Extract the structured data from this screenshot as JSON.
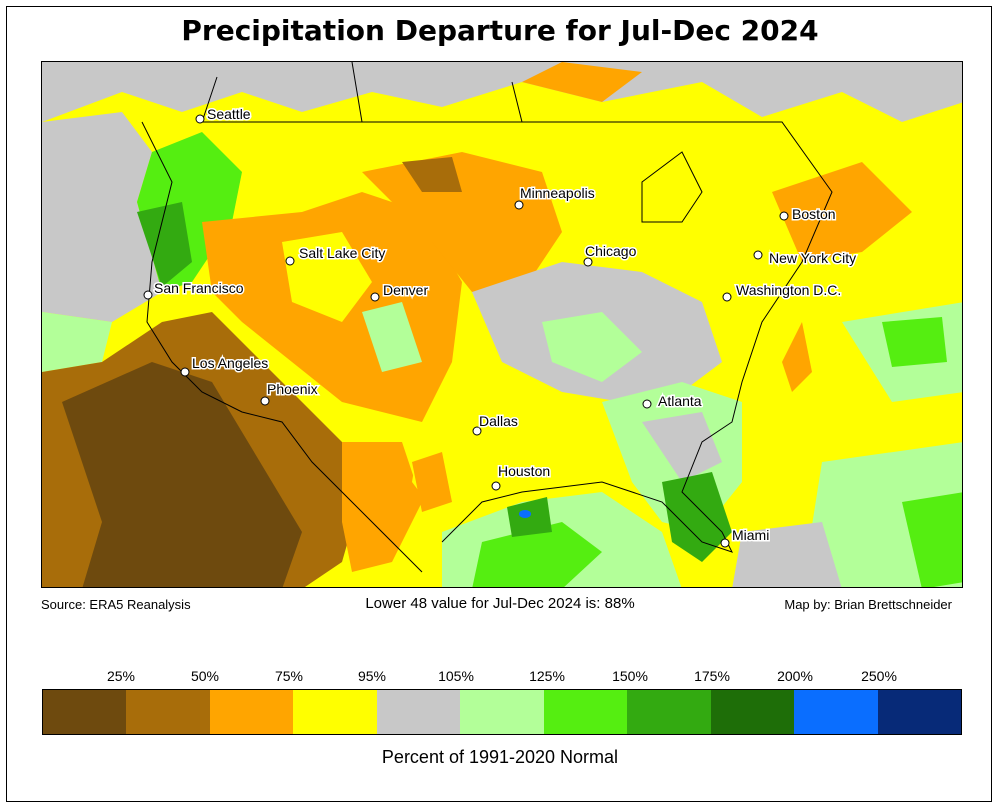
{
  "title": "Precipitation Departure for Jul-Dec 2024",
  "source": "Source: ERA5 Reanalysis",
  "summary": "Lower 48 value for Jul-Dec 2024 is: 88%",
  "credit": "Map by: Brian Brettschneider",
  "legend": {
    "caption": "Percent of 1991-2020 Normal",
    "ticks": [
      "25%",
      "50%",
      "75%",
      "95%",
      "105%",
      "125%",
      "150%",
      "175%",
      "200%",
      "250%"
    ],
    "colors": [
      "#6e4a0e",
      "#a86d0a",
      "#ffa500",
      "#ffff00",
      "#c8c8c8",
      "#b3ff99",
      "#55ee11",
      "#33aa11",
      "#1e6e08",
      "#0a6eff",
      "#072a78"
    ]
  },
  "cities": [
    {
      "name": "Seattle"
    },
    {
      "name": "San Francisco"
    },
    {
      "name": "Los Angeles"
    },
    {
      "name": "Phoenix"
    },
    {
      "name": "Salt Lake City"
    },
    {
      "name": "Denver"
    },
    {
      "name": "Minneapolis"
    },
    {
      "name": "Chicago"
    },
    {
      "name": "Dallas"
    },
    {
      "name": "Houston"
    },
    {
      "name": "Atlanta"
    },
    {
      "name": "Miami"
    },
    {
      "name": "Washington D.C."
    },
    {
      "name": "New York City"
    },
    {
      "name": "Boston"
    }
  ]
}
